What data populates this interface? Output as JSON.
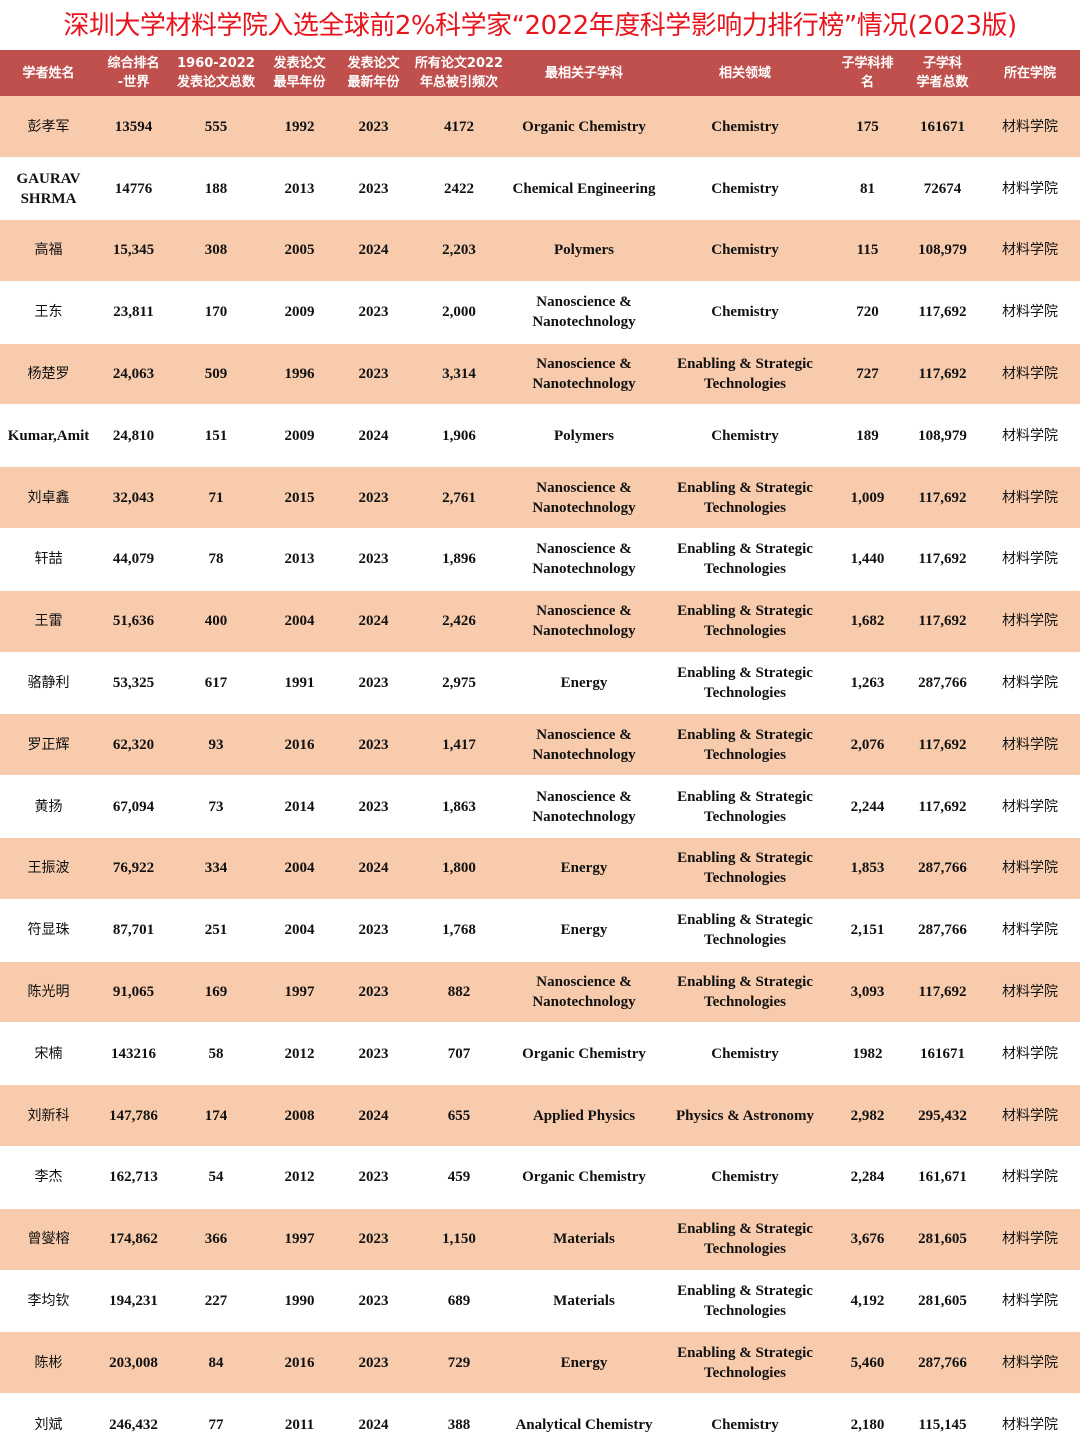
{
  "title": "深圳大学材料学院入选全球前2%科学家“2022年度科学影响力排行榜”情况(2023版)",
  "headers": [
    "学者姓名",
    "综合排名\n-世界",
    "1960-2022\n发表论文总数",
    "发表论文\n最早年份",
    "发表论文\n最新年份",
    "所有论文2022\n年总被引频次",
    "最相关子学科",
    "相关领域",
    "子学科排\n名",
    "子学科\n学者总数",
    "所在学院"
  ],
  "rows": [
    [
      "彭孝军",
      "13594",
      "555",
      "1992",
      "2023",
      "4172",
      "Organic Chemistry",
      "Chemistry",
      "175",
      "161671",
      "材料学院"
    ],
    [
      "GAURAV SHRMA",
      "14776",
      "188",
      "2013",
      "2023",
      "2422",
      "Chemical Engineering",
      "Chemistry",
      "81",
      "72674",
      "材料学院"
    ],
    [
      "高福",
      "15,345",
      "308",
      "2005",
      "2024",
      "2,203",
      "Polymers",
      "Chemistry",
      "115",
      "108,979",
      "材料学院"
    ],
    [
      "王东",
      "23,811",
      "170",
      "2009",
      "2023",
      "2,000",
      "Nanoscience & Nanotechnology",
      "Chemistry",
      "720",
      "117,692",
      "材料学院"
    ],
    [
      "杨楚罗",
      "24,063",
      "509",
      "1996",
      "2023",
      "3,314",
      "Nanoscience & Nanotechnology",
      "Enabling & Strategic Technologies",
      "727",
      "117,692",
      "材料学院"
    ],
    [
      "Kumar,Amit",
      "24,810",
      "151",
      "2009",
      "2024",
      "1,906",
      "Polymers",
      "Chemistry",
      "189",
      "108,979",
      "材料学院"
    ],
    [
      "刘卓鑫",
      "32,043",
      "71",
      "2015",
      "2023",
      "2,761",
      "Nanoscience & Nanotechnology",
      "Enabling & Strategic Technologies",
      "1,009",
      "117,692",
      "材料学院"
    ],
    [
      "轩喆",
      "44,079",
      "78",
      "2013",
      "2023",
      "1,896",
      "Nanoscience & Nanotechnology",
      "Enabling & Strategic Technologies",
      "1,440",
      "117,692",
      "材料学院"
    ],
    [
      "王雷",
      "51,636",
      "400",
      "2004",
      "2024",
      "2,426",
      "Nanoscience & Nanotechnology",
      "Enabling & Strategic Technologies",
      "1,682",
      "117,692",
      "材料学院"
    ],
    [
      "骆静利",
      "53,325",
      "617",
      "1991",
      "2023",
      "2,975",
      "Energy",
      "Enabling & Strategic Technologies",
      "1,263",
      "287,766",
      "材料学院"
    ],
    [
      "罗正辉",
      "62,320",
      "93",
      "2016",
      "2023",
      "1,417",
      "Nanoscience & Nanotechnology",
      "Enabling & Strategic Technologies",
      "2,076",
      "117,692",
      "材料学院"
    ],
    [
      "黄扬",
      "67,094",
      "73",
      "2014",
      "2023",
      "1,863",
      "Nanoscience & Nanotechnology",
      "Enabling & Strategic Technologies",
      "2,244",
      "117,692",
      "材料学院"
    ],
    [
      "王振波",
      "76,922",
      "334",
      "2004",
      "2024",
      "1,800",
      "Energy",
      "Enabling & Strategic Technologies",
      "1,853",
      "287,766",
      "材料学院"
    ],
    [
      "符显珠",
      "87,701",
      "251",
      "2004",
      "2023",
      "1,768",
      "Energy",
      "Enabling & Strategic Technologies",
      "2,151",
      "287,766",
      "材料学院"
    ],
    [
      "陈光明",
      "91,065",
      "169",
      "1997",
      "2023",
      "882",
      "Nanoscience & Nanotechnology",
      "Enabling & Strategic Technologies",
      "3,093",
      "117,692",
      "材料学院"
    ],
    [
      "宋楠",
      "143216",
      "58",
      "2012",
      "2023",
      "707",
      "Organic Chemistry",
      "Chemistry",
      "1982",
      "161671",
      "材料学院"
    ],
    [
      "刘新科",
      "147,786",
      "174",
      "2008",
      "2024",
      "655",
      "Applied Physics",
      "Physics & Astronomy",
      "2,982",
      "295,432",
      "材料学院"
    ],
    [
      "李杰",
      "162,713",
      "54",
      "2012",
      "2023",
      "459",
      "Organic Chemistry",
      "Chemistry",
      "2,284",
      "161,671",
      "材料学院"
    ],
    [
      "曾燮榕",
      "174,862",
      "366",
      "1997",
      "2023",
      "1,150",
      "Materials",
      "Enabling & Strategic Technologies",
      "3,676",
      "281,605",
      "材料学院"
    ],
    [
      "李均钦",
      "194,231",
      "227",
      "1990",
      "2023",
      "689",
      "Materials",
      "Enabling & Strategic Technologies",
      "4,192",
      "281,605",
      "材料学院"
    ],
    [
      "陈彬",
      "203,008",
      "84",
      "2016",
      "2023",
      "729",
      "Energy",
      "Enabling & Strategic Technologies",
      "5,460",
      "287,766",
      "材料学院"
    ],
    [
      "刘斌",
      "246,432",
      "77",
      "2011",
      "2024",
      "388",
      "Analytical Chemistry",
      "Chemistry",
      "2,180",
      "115,145",
      "材料学院"
    ]
  ],
  "colors": {
    "title": "#e8141c",
    "header_bg": "#c0504d",
    "stripe": "#f8cbad"
  }
}
